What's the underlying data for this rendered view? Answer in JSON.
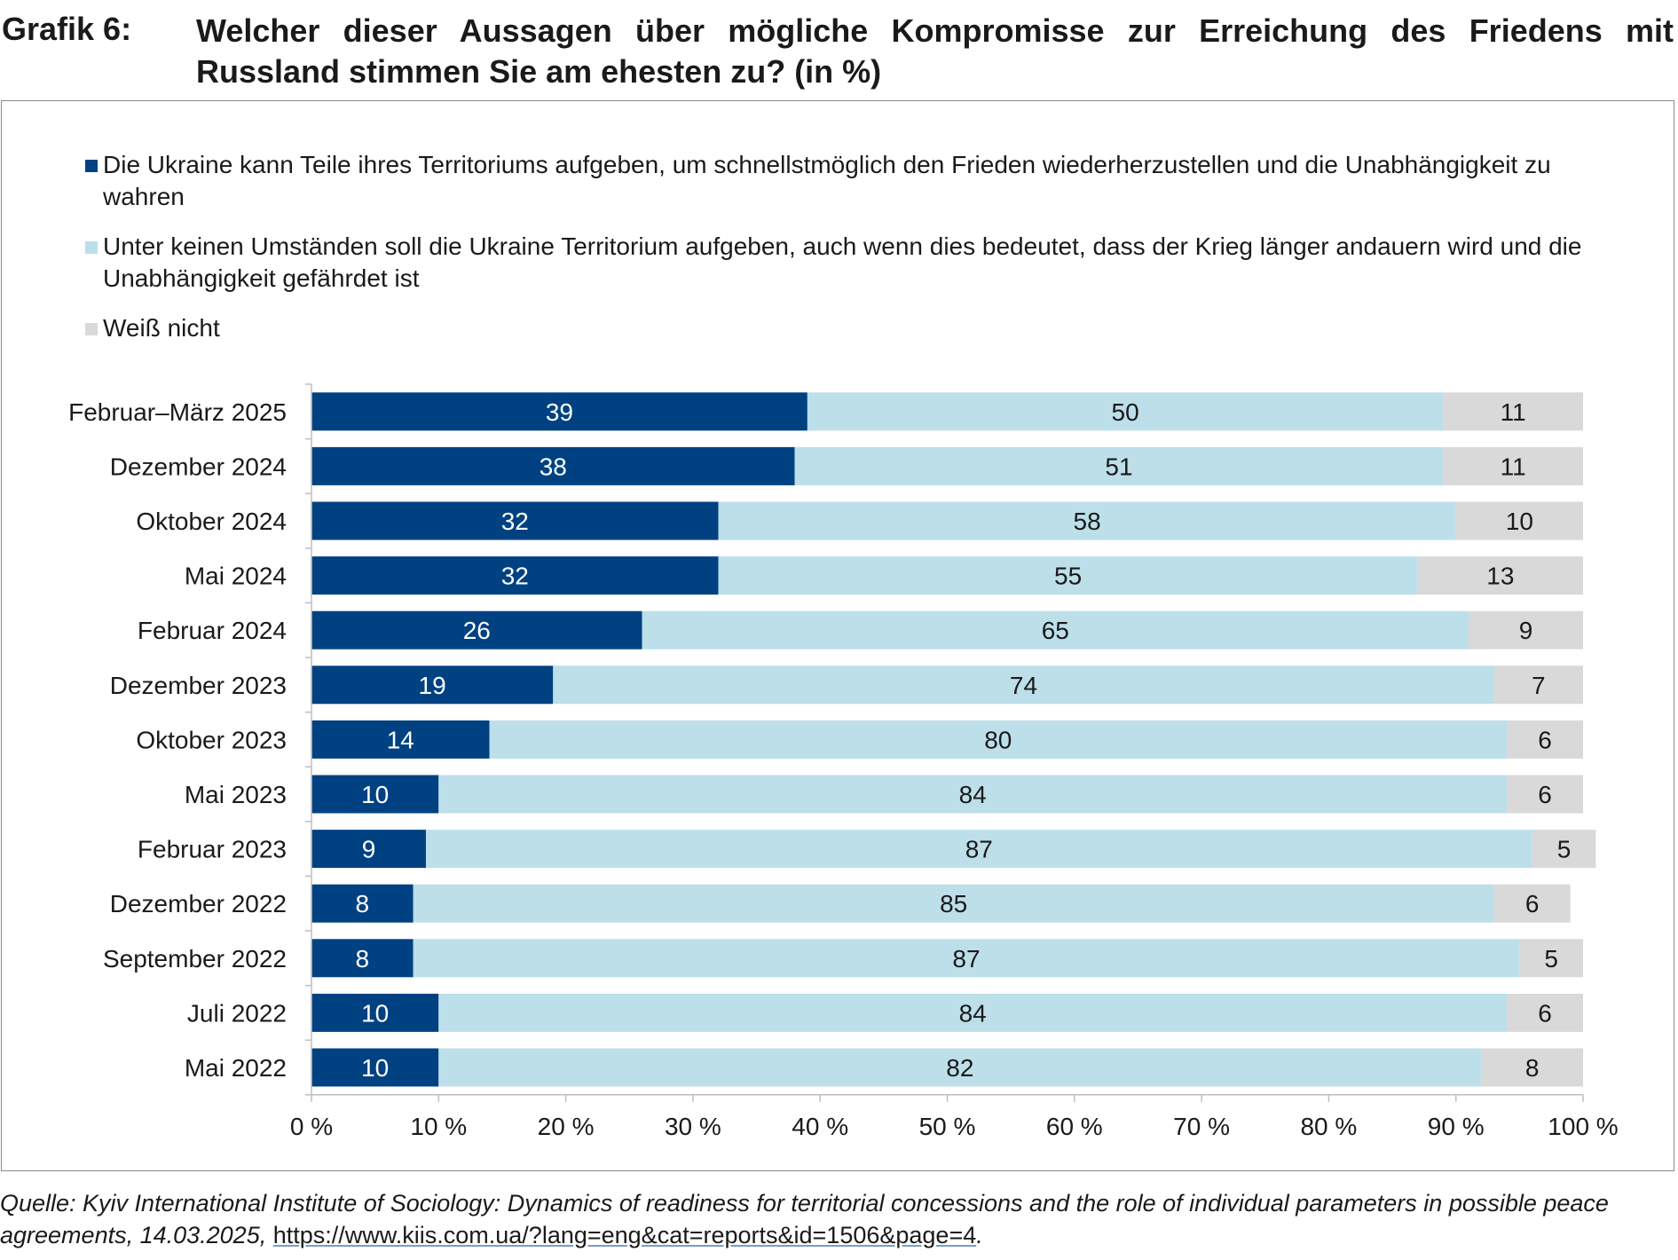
{
  "header": {
    "label": "Grafik 6:",
    "title": "Welcher dieser Aussagen über mögliche Kompromisse zur Erreichung des Friedens mit Russland stimmen Sie am ehesten zu? (in %)"
  },
  "colors": {
    "series1": "#004182",
    "series2": "#bcdfea",
    "series3": "#d9d9d9",
    "axis": "#bfbfbf",
    "label_light": "#ffffff",
    "label_dark": "#1a1a1a"
  },
  "chart_data": {
    "type": "bar",
    "orientation": "horizontal",
    "stacked": true,
    "categories": [
      "Februar–März 2025",
      "Dezember 2024",
      "Oktober 2024",
      "Mai 2024",
      "Februar 2024",
      "Dezember 2023",
      "Oktober 2023",
      "Mai 2023",
      "Februar 2023",
      "Dezember 2022",
      "September 2022",
      "Juli 2022",
      "Mai 2022"
    ],
    "series": [
      {
        "name": "Die Ukraine kann Teile ihres Territoriums aufgeben, um schnellstmöglich den Frieden wiederherzustellen und die Unabhängigkeit zu wahren",
        "values": [
          39,
          38,
          32,
          32,
          26,
          19,
          14,
          10,
          9,
          8,
          8,
          10,
          10
        ]
      },
      {
        "name": "Unter keinen Umständen soll die Ukraine Territorium aufgeben, auch wenn dies bedeutet, dass der Krieg länger andauern wird und die Unabhängigkeit gefährdet ist",
        "values": [
          50,
          51,
          58,
          55,
          65,
          74,
          80,
          84,
          87,
          85,
          87,
          84,
          82
        ]
      },
      {
        "name": "Weiß nicht",
        "values": [
          11,
          11,
          10,
          13,
          9,
          7,
          6,
          6,
          5,
          6,
          5,
          6,
          8
        ]
      }
    ],
    "xlim": [
      0,
      100
    ],
    "xticks": [
      "0 %",
      "10 %",
      "20 %",
      "30 %",
      "40 %",
      "50 %",
      "60 %",
      "70 %",
      "80 %",
      "90 %",
      "100 %"
    ],
    "xlabel": "",
    "ylabel": "",
    "legend_position": "top",
    "grid": false
  },
  "source": {
    "text": "Quelle: Kyiv International Institute of Sociology: Dynamics of readiness for territorial concessions and the role of individual parameters in possible peace agreements, 14.03.2025, ",
    "url": "https://www.kiis.com.ua/?lang=eng&cat=reports&id=1506&page=4",
    "end": "."
  }
}
